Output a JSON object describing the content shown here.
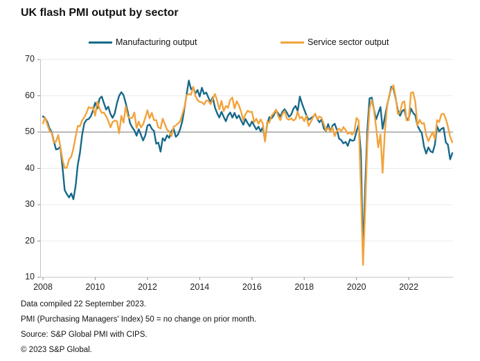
{
  "title": "UK flash PMI output by sector",
  "footer": {
    "lines": [
      "Data compiled 22 September 2023.",
      "PMI (Purchasing Managers' Index) 50 = no change on prior month.",
      "Source: S&P Global PMI with CIPS.",
      "© 2023 S&P Global."
    ]
  },
  "chart_data": {
    "type": "line",
    "title": "UK flash PMI output by sector",
    "xlabel": "",
    "ylabel": "",
    "ylim": [
      10,
      70
    ],
    "y_ticks": [
      10,
      20,
      30,
      40,
      50,
      60,
      70
    ],
    "reference_line": 50,
    "grid": "horizontal",
    "legend_position": "top",
    "x_start": "2008-01",
    "x_end": "2023-09",
    "x_interval": "monthly",
    "x_tick_years": [
      2008,
      2010,
      2012,
      2014,
      2016,
      2018,
      2020,
      2022
    ],
    "colors": {
      "manufacturing": "#17698A",
      "services": "#F1A33C",
      "reference_line": "#8E8E8E",
      "gridline": "#EAEAEA",
      "axis": "#C2C2C2"
    },
    "series": [
      {
        "name": "Manufacturing output",
        "color": "#17698A",
        "values": [
          54.3,
          53.9,
          52.8,
          51.0,
          50.0,
          47.5,
          45.2,
          45.4,
          46.0,
          40.2,
          34.0,
          32.9,
          32.0,
          33.1,
          31.5,
          35.2,
          41.0,
          44.2,
          49.3,
          52.4,
          53.4,
          53.6,
          54.4,
          56.0,
          58.1,
          56.5,
          59.2,
          59.8,
          58.0,
          56.2,
          57.0,
          55.0,
          53.9,
          55.2,
          58.0,
          60.0,
          61.0,
          60.2,
          58.0,
          55.5,
          52.5,
          51.3,
          50.5,
          49.0,
          50.8,
          49.2,
          47.7,
          49.1,
          51.8,
          52.1,
          50.9,
          50.3,
          46.8,
          47.1,
          44.6,
          48.3,
          47.6,
          49.1,
          48.4,
          50.2,
          51.0,
          48.7,
          49.3,
          50.8,
          53.0,
          56.5,
          60.5,
          64.2,
          61.8,
          62.3,
          60.6,
          61.6,
          59.8,
          62.2,
          60.5,
          60.9,
          59.5,
          58.2,
          59.6,
          56.8,
          55.2,
          54.0,
          55.6,
          54.2,
          53.0,
          54.6,
          55.4,
          54.0,
          55.3,
          53.8,
          54.6,
          53.2,
          52.0,
          53.6,
          52.5,
          51.6,
          52.9,
          51.8,
          50.7,
          51.5,
          50.2,
          51.3,
          47.6,
          52.3,
          54.1,
          53.8,
          54.6,
          56.0,
          55.2,
          54.3,
          55.6,
          56.3,
          55.4,
          54.2,
          54.8,
          56.4,
          57.2,
          55.8,
          59.8,
          57.8,
          56.2,
          54.6,
          53.4,
          53.8,
          54.2,
          54.9,
          53.6,
          52.7,
          53.5,
          51.0,
          50.3,
          52.2,
          50.1,
          51.8,
          52.3,
          50.6,
          48.2,
          47.8,
          46.9,
          47.3,
          46.2,
          48.0,
          47.6,
          47.8,
          50.2,
          52.0,
          44.3,
          16.6,
          35.0,
          50.8,
          59.3,
          59.5,
          56.3,
          53.5,
          55.2,
          56.9,
          50.9,
          54.0,
          57.2,
          59.8,
          62.5,
          62.0,
          59.2,
          56.0,
          54.5,
          55.8,
          56.2,
          53.5,
          53.8,
          56.5,
          55.3,
          54.6,
          51.8,
          50.6,
          49.7,
          46.1,
          44.1,
          45.8,
          44.7,
          44.4,
          46.6,
          51.6,
          50.2,
          50.9,
          51.2,
          47.2,
          46.5,
          42.5,
          44.2
        ]
      },
      {
        "name": "Service sector output",
        "color": "#F1A33C",
        "values": [
          52.4,
          54.0,
          52.1,
          50.4,
          49.8,
          47.1,
          47.4,
          49.2,
          46.0,
          42.4,
          40.1,
          40.2,
          42.5,
          43.2,
          45.5,
          48.7,
          51.7,
          51.6,
          53.2,
          54.1,
          55.3,
          56.9,
          56.6,
          56.8,
          54.5,
          58.4,
          56.5,
          55.3,
          55.4,
          54.4,
          53.1,
          51.3,
          52.8,
          53.2,
          53.0,
          49.7,
          54.5,
          52.6,
          57.1,
          54.3,
          53.8,
          53.9,
          55.4,
          51.1,
          52.9,
          51.3,
          52.1,
          54.0,
          56.0,
          53.8,
          55.3,
          53.3,
          53.3,
          51.3,
          51.0,
          53.7,
          52.2,
          50.6,
          50.2,
          48.9,
          51.5,
          51.8,
          52.4,
          52.9,
          54.9,
          56.9,
          60.2,
          60.5,
          60.3,
          62.5,
          60.0,
          58.8,
          58.3,
          58.2,
          57.6,
          58.7,
          58.6,
          57.7,
          59.1,
          60.5,
          58.7,
          56.2,
          58.6,
          55.8,
          57.2,
          56.7,
          58.9,
          59.5,
          56.5,
          58.5,
          57.4,
          55.6,
          53.3,
          54.9,
          55.9,
          55.5,
          55.6,
          52.7,
          53.7,
          52.3,
          53.5,
          52.3,
          47.4,
          52.9,
          52.6,
          54.5,
          55.2,
          56.2,
          54.5,
          53.3,
          55.0,
          55.8,
          53.8,
          53.4,
          53.8,
          53.2,
          53.6,
          55.6,
          53.8,
          54.2,
          53.0,
          54.5,
          51.7,
          52.8,
          54.0,
          55.1,
          53.5,
          54.3,
          53.9,
          52.2,
          50.4,
          51.2,
          50.1,
          51.3,
          48.9,
          50.4,
          51.0,
          50.2,
          51.4,
          50.6,
          49.5,
          50.0,
          49.3,
          50.0,
          53.9,
          53.2,
          34.5,
          13.4,
          29.0,
          47.1,
          56.5,
          58.8,
          56.1,
          51.4,
          45.8,
          49.4,
          38.8,
          49.7,
          56.8,
          60.1,
          61.8,
          62.9,
          59.6,
          55.0,
          55.4,
          58.1,
          58.5,
          53.2,
          53.3,
          60.8,
          61.0,
          58.3,
          51.8,
          53.4,
          52.3,
          52.5,
          49.2,
          47.5,
          48.8,
          50.0,
          48.0,
          53.3,
          52.8,
          54.9,
          55.1,
          53.7,
          51.5,
          48.7,
          47.2
        ]
      }
    ]
  }
}
